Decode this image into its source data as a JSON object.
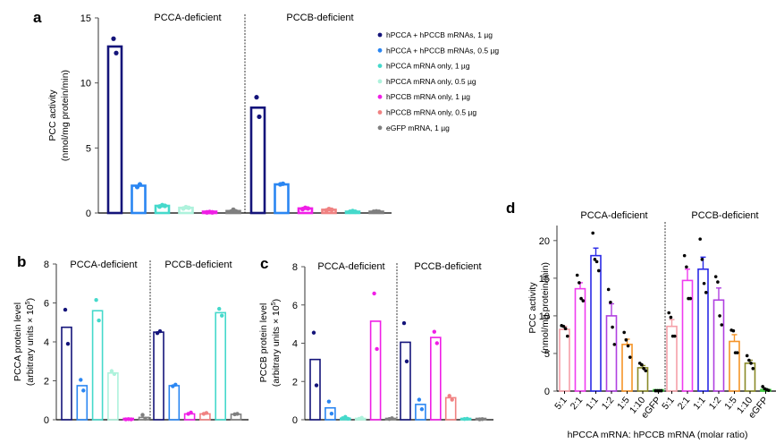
{
  "colors": {
    "navy": "#14147a",
    "blue": "#2a86f2",
    "turquoise": "#45d9cb",
    "mint": "#aef2dc",
    "magenta": "#f01ee6",
    "salmon": "#f08282",
    "gray": "#7f7f7f",
    "d_pink": "#f5a0a8",
    "d_magenta": "#f03cf0",
    "d_blue": "#2a2ae6",
    "d_purple": "#b040e0",
    "d_orange": "#f59428",
    "d_olive": "#8a8a28",
    "d_green": "#3cd23c"
  },
  "legend": {
    "items": [
      {
        "label": "hPCCA + hPCCB mRNAs, 1 µg",
        "color": "navy"
      },
      {
        "label": "hPCCA + hPCCB mRNAs, 0.5 µg",
        "color": "blue"
      },
      {
        "label": "hPCCA mRNA only, 1 µg",
        "color": "turquoise"
      },
      {
        "label": "hPCCA mRNA only, 0.5 µg",
        "color": "mint"
      },
      {
        "label": "hPCCB mRNA only, 1 µg",
        "color": "magenta"
      },
      {
        "label": "hPCCB mRNA only, 0.5 µg",
        "color": "salmon"
      },
      {
        "label": "eGFP mRNA, 1 µg",
        "color": "gray"
      }
    ]
  },
  "chart_data": [
    {
      "panel": "a",
      "type": "bar",
      "title": "",
      "ylabel": "PCC activity",
      "ylabel2": "(nmol/mg protein/min)",
      "xlabel": "",
      "ylim": [
        0,
        15
      ],
      "yticks": [
        0,
        5,
        10,
        15
      ],
      "grid": false,
      "legend_position": "right",
      "groups": [
        {
          "label": "PCCA-deficient",
          "bars": [
            {
              "series": "hPCCA + hPCCB mRNAs, 1 µg",
              "color": "navy",
              "value": 12.8,
              "points": [
                13.4,
                12.3
              ]
            },
            {
              "series": "hPCCA + hPCCB mRNAs, 0.5 µg",
              "color": "blue",
              "value": 2.1,
              "points": [
                2.0,
                2.2
              ]
            },
            {
              "series": "hPCCA mRNA only, 1 µg",
              "color": "turquoise",
              "value": 0.55,
              "points": [
                0.5,
                0.6,
                0.55
              ]
            },
            {
              "series": "hPCCA mRNA only, 0.5 µg",
              "color": "mint",
              "value": 0.4,
              "points": [
                0.35,
                0.45,
                0.4
              ]
            },
            {
              "series": "hPCCB mRNA only, 1 µg",
              "color": "magenta",
              "value": 0.05,
              "points": [
                0.05,
                0.08,
                0.05
              ]
            },
            {
              "series": "eGFP mRNA, 1 µg",
              "color": "gray",
              "value": 0.15,
              "points": [
                0.1,
                0.25,
                0.12
              ]
            }
          ]
        },
        {
          "label": "PCCB-deficient",
          "bars": [
            {
              "series": "hPCCA + hPCCB mRNAs, 1 µg",
              "color": "navy",
              "value": 8.1,
              "points": [
                8.9,
                7.4
              ]
            },
            {
              "series": "hPCCA + hPCCB mRNAs, 0.5 µg",
              "color": "blue",
              "value": 2.2,
              "points": [
                2.2,
                2.25
              ]
            },
            {
              "series": "hPCCB mRNA only, 1 µg",
              "color": "magenta",
              "value": 0.35,
              "points": [
                0.3,
                0.4,
                0.35
              ]
            },
            {
              "series": "hPCCB mRNA only, 0.5 µg",
              "color": "salmon",
              "value": 0.25,
              "points": [
                0.2,
                0.3,
                0.25
              ]
            },
            {
              "series": "hPCCA mRNA only, 1 µg",
              "color": "turquoise",
              "value": 0.1,
              "points": [
                0.1,
                0.15,
                0.1
              ]
            },
            {
              "series": "eGFP mRNA, 1 µg",
              "color": "gray",
              "value": 0.1,
              "points": [
                0.1,
                0.12,
                0.1
              ]
            }
          ]
        }
      ]
    },
    {
      "panel": "b",
      "type": "bar",
      "title": "",
      "ylabel": "PCCA protein level",
      "ylabel2": "(arbitrary units × 10",
      "ylabel2_sup": "5",
      "ylabel2_end": ")",
      "xlabel": "",
      "ylim": [
        0,
        8
      ],
      "yticks": [
        0,
        2,
        4,
        6,
        8
      ],
      "grid": false,
      "groups": [
        {
          "label": "PCCA-deficient",
          "bars": [
            {
              "color": "navy",
              "value": 4.75,
              "points": [
                5.65,
                3.9
              ]
            },
            {
              "color": "blue",
              "value": 1.75,
              "points": [
                2.05,
                1.5
              ]
            },
            {
              "color": "turquoise",
              "value": 5.6,
              "points": [
                6.15,
                5.1
              ]
            },
            {
              "color": "mint",
              "value": 2.4,
              "points": [
                2.5,
                2.35
              ]
            },
            {
              "color": "magenta",
              "value": 0.02,
              "points": [
                0.02,
                0.03,
                0.02
              ]
            },
            {
              "color": "gray",
              "value": 0.12,
              "points": [
                0.25,
                0.05
              ]
            }
          ]
        },
        {
          "label": "PCCB-deficient",
          "bars": [
            {
              "color": "navy",
              "value": 4.5,
              "points": [
                4.45,
                4.55
              ]
            },
            {
              "color": "blue",
              "value": 1.75,
              "points": [
                1.72,
                1.8
              ]
            },
            {
              "color": "magenta",
              "value": 0.3,
              "points": [
                0.3,
                0.37
              ]
            },
            {
              "color": "salmon",
              "value": 0.3,
              "points": [
                0.3,
                0.35
              ]
            },
            {
              "color": "turquoise",
              "value": 5.5,
              "points": [
                5.7,
                5.35
              ]
            },
            {
              "color": "gray",
              "value": 0.28,
              "points": [
                0.28,
                0.3
              ]
            }
          ]
        }
      ]
    },
    {
      "panel": "c",
      "type": "bar",
      "title": "",
      "ylabel": "PCCB protein level",
      "ylabel2": "(arbitrary units × 10",
      "ylabel2_sup": "5",
      "ylabel2_end": ")",
      "xlabel": "",
      "ylim": [
        0,
        8
      ],
      "yticks": [
        0,
        2,
        4,
        6,
        8
      ],
      "grid": false,
      "groups": [
        {
          "label": "PCCA-deficient",
          "bars": [
            {
              "color": "navy",
              "value": 3.15,
              "points": [
                4.55,
                1.8
              ]
            },
            {
              "color": "blue",
              "value": 0.62,
              "points": [
                0.95,
                0.32
              ]
            },
            {
              "color": "turquoise",
              "value": 0.08,
              "points": [
                0.08,
                0.15,
                0.05
              ]
            },
            {
              "color": "mint",
              "value": 0.06,
              "points": [
                0.05,
                0.1
              ]
            },
            {
              "color": "magenta",
              "value": 5.15,
              "points": [
                6.6,
                3.7
              ]
            },
            {
              "color": "gray",
              "value": 0.04,
              "points": [
                0.04,
                0.08
              ]
            }
          ]
        },
        {
          "label": "PCCB-deficient",
          "bars": [
            {
              "color": "navy",
              "value": 4.05,
              "points": [
                5.05,
                3.05
              ]
            },
            {
              "color": "blue",
              "value": 0.8,
              "points": [
                1.05,
                0.55
              ]
            },
            {
              "color": "magenta",
              "value": 4.3,
              "points": [
                4.6,
                4.0
              ]
            },
            {
              "color": "salmon",
              "value": 1.15,
              "points": [
                1.25,
                1.05
              ]
            },
            {
              "color": "turquoise",
              "value": 0.04,
              "points": [
                0.04,
                0.05
              ]
            },
            {
              "color": "gray",
              "value": 0.02,
              "points": [
                0.02,
                0.03
              ]
            }
          ]
        }
      ]
    },
    {
      "panel": "d",
      "type": "bar",
      "title": "",
      "ylabel": "PCC activity",
      "ylabel2": "(nmol/mg protein/min)",
      "xlabel": "hPCCA mRNA: hPCCB mRNA (molar ratio)",
      "ylim": [
        0,
        22
      ],
      "yticks": [
        0,
        5,
        10,
        15,
        20
      ],
      "grid": false,
      "groups": [
        {
          "label": "PCCA-deficient",
          "bars": [
            {
              "category": "5:1",
              "color": "d_pink",
              "value": 8.2,
              "error": 0.4,
              "points": [
                8.7,
                8.6,
                8.3,
                7.3
              ]
            },
            {
              "category": "2:1",
              "color": "d_magenta",
              "value": 13.6,
              "error": 0.8,
              "points": [
                15.4,
                14.4,
                12.3,
                12.0
              ]
            },
            {
              "category": "1:1",
              "color": "d_blue",
              "value": 18.0,
              "error": 1.0,
              "points": [
                21.0,
                17.5,
                17.2,
                16.0
              ]
            },
            {
              "category": "1:2",
              "color": "d_purple",
              "value": 10.0,
              "error": 1.6,
              "points": [
                13.5,
                11.8,
                8.5,
                6.2
              ]
            },
            {
              "category": "1:5",
              "color": "d_orange",
              "value": 6.2,
              "error": 0.7,
              "points": [
                7.8,
                6.8,
                6.0,
                4.5
              ]
            },
            {
              "category": "1:10",
              "color": "d_olive",
              "value": 3.1,
              "error": 0.3,
              "points": [
                3.7,
                3.5,
                3.0,
                2.7
              ]
            },
            {
              "category": "eGFP",
              "color": "d_green",
              "value": 0.05,
              "error": 0.02,
              "points": [
                0.05,
                0.05,
                0.05,
                0.05
              ]
            }
          ]
        },
        {
          "label": "PCCB-deficient",
          "bars": [
            {
              "category": "5:1",
              "color": "d_pink",
              "value": 8.6,
              "error": 0.9,
              "points": [
                10.4,
                9.8,
                7.3,
                7.3
              ]
            },
            {
              "category": "2:1",
              "color": "d_magenta",
              "value": 14.7,
              "error": 1.5,
              "points": [
                18.0,
                16.5,
                12.3,
                12.3
              ]
            },
            {
              "category": "1:1",
              "color": "d_blue",
              "value": 16.2,
              "error": 1.6,
              "points": [
                20.2,
                17.5,
                14.3,
                13.1
              ]
            },
            {
              "category": "1:2",
              "color": "d_purple",
              "value": 12.1,
              "error": 1.6,
              "points": [
                15.2,
                14.5,
                10.0,
                8.8
              ]
            },
            {
              "category": "1:5",
              "color": "d_orange",
              "value": 6.6,
              "error": 0.9,
              "points": [
                8.1,
                8.0,
                5.1,
                5.1
              ]
            },
            {
              "category": "1:10",
              "color": "d_olive",
              "value": 3.7,
              "error": 0.4,
              "points": [
                4.7,
                4.1,
                3.7,
                3.0
              ]
            },
            {
              "category": "eGFP",
              "color": "d_green",
              "value": 0.2,
              "error": 0.1,
              "points": [
                0.6,
                0.3,
                0.2,
                0.1
              ]
            }
          ]
        }
      ]
    }
  ]
}
